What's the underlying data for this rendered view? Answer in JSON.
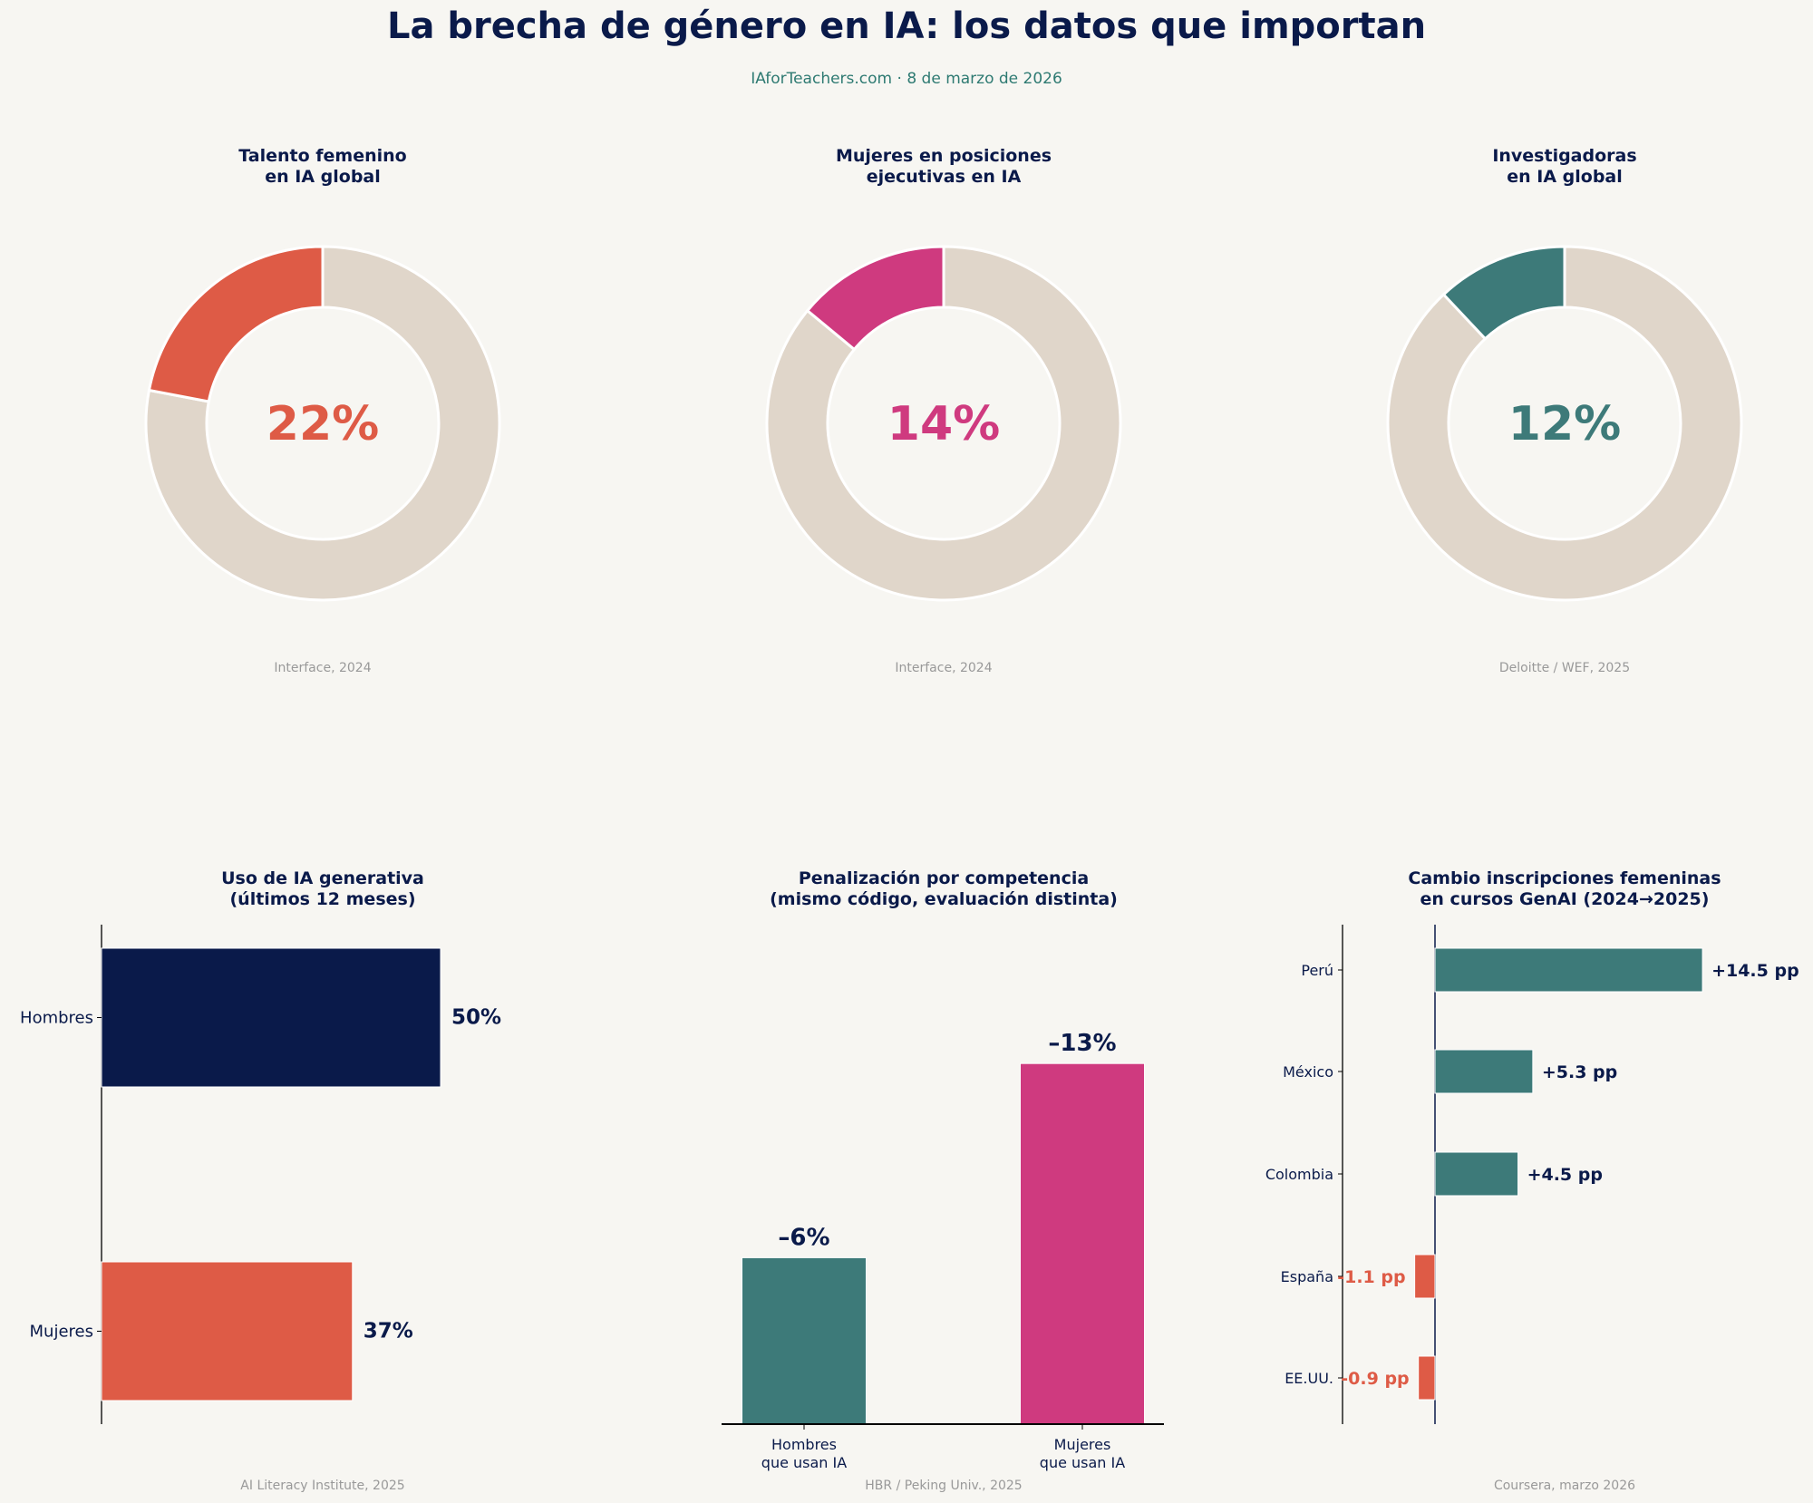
{
  "header": {
    "title": "La brecha de género en IA: los datos que importan",
    "subtitle": "IAforTeachers.com · 8 de marzo de 2026"
  },
  "colors": {
    "background": "#f7f6f2",
    "navy": "#0a1a4a",
    "coral": "#de5b46",
    "magenta": "#cf3a7f",
    "teal": "#3d7a79",
    "remainder": "#e0d6ca",
    "source": "#999999"
  },
  "chart_data": [
    {
      "type": "pie",
      "title_lines": [
        "Talento femenino",
        "en IA global"
      ],
      "value": 22,
      "label": "22%",
      "color": "#de5b46",
      "source": "Interface, 2024"
    },
    {
      "type": "pie",
      "title_lines": [
        "Mujeres en posiciones",
        "ejecutivas en IA"
      ],
      "value": 14,
      "label": "14%",
      "color": "#cf3a7f",
      "source": "Interface, 2024"
    },
    {
      "type": "pie",
      "title_lines": [
        "Investigadoras",
        "en IA global"
      ],
      "value": 12,
      "label": "12%",
      "color": "#3d7a79",
      "source": "Deloitte / WEF, 2025"
    },
    {
      "type": "bar",
      "orientation": "horizontal",
      "title_lines": [
        "Uso de IA generativa",
        "(últimos 12 meses)"
      ],
      "categories": [
        "Hombres",
        "Mujeres"
      ],
      "values": [
        50,
        37
      ],
      "labels": [
        "50%",
        "37%"
      ],
      "colors": [
        "#0a1a4a",
        "#de5b46"
      ],
      "source": "AI Literacy Institute, 2025"
    },
    {
      "type": "bar",
      "orientation": "vertical",
      "title_lines": [
        "Penalización por competencia",
        "(mismo código, evaluación distinta)"
      ],
      "categories": [
        [
          "Hombres",
          "que usan IA"
        ],
        [
          "Mujeres",
          "que usan IA"
        ]
      ],
      "values": [
        6,
        13
      ],
      "labels": [
        "–6%",
        "–13%"
      ],
      "colors": [
        "#3d7a79",
        "#cf3a7f"
      ],
      "source": "HBR / Peking Univ., 2025"
    },
    {
      "type": "bar",
      "orientation": "horizontal",
      "title_lines": [
        "Cambio inscripciones femeninas",
        "en cursos GenAI (2024→2025)"
      ],
      "categories": [
        "Perú",
        "México",
        "Colombia",
        "España",
        "EE.UU."
      ],
      "values": [
        14.5,
        5.3,
        4.5,
        -1.1,
        -0.9
      ],
      "labels": [
        "+14.5 pp",
        "+5.3 pp",
        "+4.5 pp",
        "-1.1 pp",
        "-0.9 pp"
      ],
      "source": "Coursera, marzo 2026"
    }
  ]
}
